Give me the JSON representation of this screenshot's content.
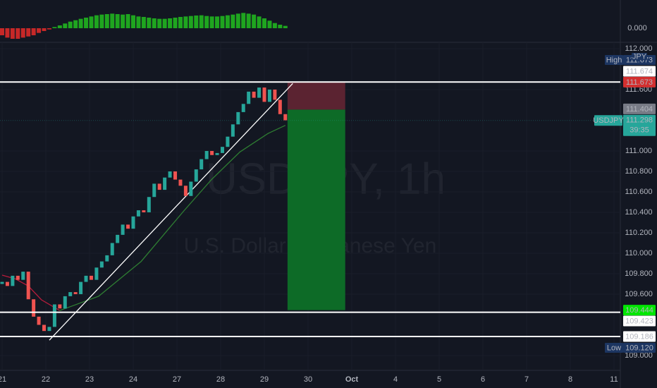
{
  "chart_data": [
    {
      "type": "histogram-pane",
      "x": [
        0,
        0.12,
        0.24,
        0.36,
        0.48,
        0.6,
        0.72,
        0.84,
        0.96,
        1.08,
        1.2,
        1.32,
        1.44,
        1.56,
        1.68,
        1.8,
        1.92,
        2.04,
        2.16,
        2.28,
        2.4,
        2.52,
        2.64,
        2.76,
        2.88,
        3,
        3.12,
        3.24,
        3.36,
        3.48,
        3.6,
        3.72,
        3.84,
        3.96,
        4.08,
        4.2,
        4.32,
        4.44,
        4.56,
        4.68,
        4.8,
        4.92,
        5.04,
        5.16,
        5.28,
        5.4,
        5.52,
        5.64,
        5.76,
        5.88,
        6,
        6.12,
        6.24,
        6.36,
        6.48
      ],
      "values": [
        -0.3,
        -0.4,
        -0.45,
        -0.45,
        -0.4,
        -0.35,
        -0.3,
        -0.2,
        -0.12,
        -0.05,
        0.05,
        0.12,
        0.2,
        0.28,
        0.34,
        0.4,
        0.45,
        0.5,
        0.55,
        0.58,
        0.6,
        0.62,
        0.6,
        0.58,
        0.6,
        0.55,
        0.5,
        0.48,
        0.45,
        0.42,
        0.4,
        0.4,
        0.42,
        0.45,
        0.48,
        0.5,
        0.52,
        0.54,
        0.55,
        0.52,
        0.5,
        0.5,
        0.52,
        0.55,
        0.58,
        0.62,
        0.65,
        0.62,
        0.58,
        0.5,
        0.42,
        0.32,
        0.22,
        0.15,
        0.1
      ],
      "colors": {
        "up": "#1fa51f",
        "down": "#c62828"
      },
      "ylim": [
        -0.6,
        1.2
      ],
      "yticks": [
        {
          "value": 0,
          "label": "0.000"
        }
      ]
    },
    {
      "type": "candlestick",
      "title": "USDJPY, 1h",
      "subtitle": "U.S. Dollar / Japanese Yen",
      "x": [
        0,
        0.12,
        0.24,
        0.36,
        0.48,
        0.6,
        0.72,
        0.84,
        0.96,
        1.08,
        1.2,
        1.32,
        1.44,
        1.56,
        1.68,
        1.8,
        1.92,
        2.04,
        2.16,
        2.28,
        2.4,
        2.52,
        2.64,
        2.76,
        2.88,
        3,
        3.12,
        3.24,
        3.36,
        3.48,
        3.6,
        3.72,
        3.84,
        3.96,
        4.08,
        4.2,
        4.32,
        4.44,
        4.56,
        4.68,
        4.8,
        4.92,
        5.04,
        5.16,
        5.28,
        5.4,
        5.52,
        5.64,
        5.76,
        5.88,
        6,
        6.12,
        6.24,
        6.36,
        6.48
      ],
      "open": [
        109.7,
        109.72,
        109.68,
        109.78,
        109.74,
        109.82,
        109.55,
        109.38,
        109.3,
        109.24,
        109.28,
        109.5,
        109.46,
        109.58,
        109.62,
        109.6,
        109.72,
        109.78,
        109.74,
        109.86,
        109.92,
        109.98,
        110.1,
        110.18,
        110.28,
        110.24,
        110.36,
        110.42,
        110.4,
        110.55,
        110.68,
        110.62,
        110.74,
        110.8,
        110.72,
        110.66,
        110.56,
        110.7,
        110.82,
        110.92,
        111.0,
        110.96,
        110.98,
        111.04,
        111.14,
        111.26,
        111.38,
        111.46,
        111.58,
        111.52,
        111.62,
        111.48,
        111.6,
        111.5,
        111.36
      ],
      "high": 111.673,
      "low": {
        "value": 109.12,
        "label": "109.120"
      },
      "close": [
        109.72,
        109.68,
        109.78,
        109.74,
        109.82,
        109.55,
        109.38,
        109.3,
        109.24,
        109.28,
        109.5,
        109.46,
        109.58,
        109.62,
        109.6,
        109.72,
        109.78,
        109.74,
        109.86,
        109.92,
        109.98,
        110.1,
        110.18,
        110.28,
        110.24,
        110.36,
        110.42,
        110.4,
        110.55,
        110.68,
        110.62,
        110.74,
        110.8,
        110.72,
        110.66,
        110.56,
        110.7,
        110.82,
        110.92,
        111.0,
        110.96,
        110.98,
        111.04,
        111.14,
        111.26,
        111.38,
        111.46,
        111.58,
        111.52,
        111.62,
        111.48,
        111.6,
        111.5,
        111.36,
        111.3
      ],
      "colors": {
        "up": "#26a69a",
        "down": "#ef5350"
      },
      "ylim": [
        108.855,
        112.062
      ],
      "yticks": [
        {
          "value": 112,
          "label": "112.000"
        },
        {
          "value": 111.6,
          "label": "111.600"
        },
        {
          "value": 111,
          "label": "111.000"
        },
        {
          "value": 110.8,
          "label": "110.800"
        },
        {
          "value": 110.6,
          "label": "110.600"
        },
        {
          "value": 110.4,
          "label": "110.400"
        },
        {
          "value": 110.2,
          "label": "110.200"
        },
        {
          "value": 110,
          "label": "110.000"
        },
        {
          "value": 109.8,
          "label": "109.800"
        },
        {
          "value": 109.6,
          "label": "109.600"
        },
        {
          "value": 109,
          "label": "109.000"
        }
      ],
      "xlim": [
        -0.05,
        14.15
      ],
      "xticks": [
        {
          "value": 0,
          "label": "21"
        },
        {
          "value": 1,
          "label": "22"
        },
        {
          "value": 2,
          "label": "23"
        },
        {
          "value": 3,
          "label": "24"
        },
        {
          "value": 4,
          "label": "27"
        },
        {
          "value": 5,
          "label": "28"
        },
        {
          "value": 6,
          "label": "29"
        },
        {
          "value": 7,
          "label": "30"
        },
        {
          "value": 8,
          "label": "Oct"
        },
        {
          "value": 9,
          "label": "4"
        },
        {
          "value": 10,
          "label": "5"
        },
        {
          "value": 11,
          "label": "6"
        },
        {
          "value": 12,
          "label": "7"
        },
        {
          "value": 13,
          "label": "8"
        },
        {
          "value": 14,
          "label": "11"
        }
      ],
      "grid": true,
      "lines": [
        {
          "color": "#b71c3c",
          "x": [
            0,
            0.3,
            0.6,
            0.9,
            1.32
          ],
          "values": [
            109.786,
            109.75,
            109.68,
            109.545,
            109.44
          ]
        },
        {
          "color": "#2e7d32",
          "x": [
            1.32,
            2.21,
            3.18,
            4.15,
            4.79,
            5.44,
            6.08,
            6.48
          ],
          "values": [
            109.44,
            109.58,
            109.92,
            110.41,
            110.72,
            110.99,
            111.17,
            111.25
          ]
        },
        {
          "color": "#ffffff",
          "x": [
            1.08,
            6.65
          ],
          "values": [
            109.15,
            111.66
          ]
        }
      ],
      "levels": [
        111.674,
        109.423,
        109.186
      ],
      "position": {
        "x": [
          6.53,
          7.85
        ],
        "stop": 111.673,
        "entry": 111.404,
        "target": 109.444
      },
      "symbol": "USDJPY",
      "last": 111.298,
      "countdown": "39:35",
      "currency": "JPY",
      "high_label": "High",
      "low_label": "Low"
    }
  ]
}
